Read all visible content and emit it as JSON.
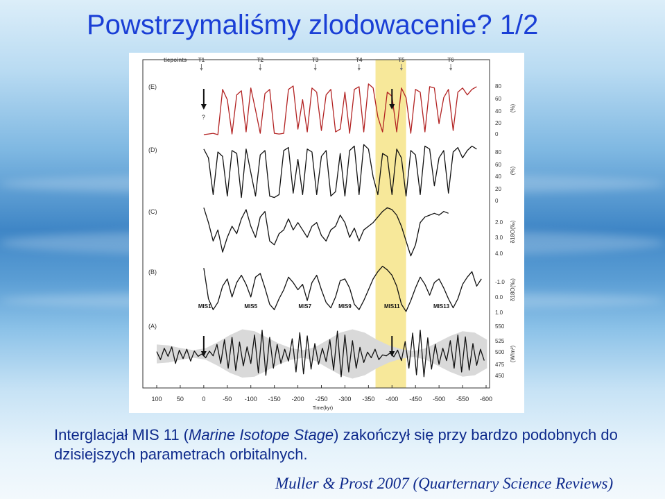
{
  "slide": {
    "title": "Powstrzymaliśmy zlodowacenie? 1/2",
    "caption": {
      "part1": "Interglacjał MIS 11 (",
      "italic": "Marine Isotope Stage",
      "part2": ") zakończył się przy bardzo podobnych do dzisiejszych parametrach orbitalnych."
    },
    "citation": "Muller & Prost 2007 (Quarternary Science Reviews)"
  },
  "colors": {
    "title": "#1a3fd6",
    "caption": "#0e2a8c",
    "series_E": "#b22222",
    "series_other": "#111111",
    "highlight": "#f7e89a",
    "envelope": "#d9d9d9"
  },
  "chart_data": {
    "type": "line",
    "xlabel": "Time(kyr)",
    "x_ticks": [
      100,
      50,
      0,
      -50,
      -100,
      -150,
      -200,
      -250,
      -300,
      -350,
      -400,
      -450,
      -500,
      -550,
      -600
    ],
    "xlim": [
      100,
      -600
    ],
    "tiepoints_label": "tiepoints",
    "tiepoints": [
      {
        "label": "T1",
        "x": 5
      },
      {
        "label": "T2",
        "x": -120
      },
      {
        "label": "T3",
        "x": -237
      },
      {
        "label": "T4",
        "x": -330
      },
      {
        "label": "T5",
        "x": -420
      },
      {
        "label": "T6",
        "x": -525
      }
    ],
    "highlight_range": [
      -365,
      -430
    ],
    "grid": false,
    "panels": [
      {
        "id": "E",
        "label": "(E)",
        "color": "#b22222",
        "ticks": [
          "80",
          "60",
          "40",
          "20",
          "0"
        ],
        "axis_label": "(%)",
        "ylim": [
          0,
          85
        ],
        "question_mark": "?",
        "arrows": [
          0,
          -400
        ],
        "x": [
          0,
          -10,
          -20,
          -30,
          -40,
          -50,
          -60,
          -70,
          -80,
          -90,
          -100,
          -110,
          -120,
          -130,
          -140,
          -150,
          -160,
          -170,
          -180,
          -190,
          -200,
          -210,
          -220,
          -230,
          -240,
          -250,
          -260,
          -270,
          -280,
          -290,
          -300,
          -310,
          -320,
          -330,
          -340,
          -350,
          -360,
          -370,
          -380,
          -390,
          -400,
          -410,
          -420,
          -430,
          -440,
          -450,
          -460,
          -470,
          -480,
          -490,
          -500,
          -510,
          -520,
          -530,
          -540,
          -550,
          -560,
          -570,
          -580
        ],
        "y": [
          4,
          5,
          6,
          4,
          70,
          55,
          5,
          62,
          68,
          8,
          72,
          40,
          6,
          64,
          70,
          6,
          5,
          6,
          70,
          75,
          12,
          55,
          8,
          72,
          66,
          10,
          62,
          70,
          8,
          12,
          66,
          6,
          70,
          74,
          8,
          78,
          72,
          30,
          8,
          66,
          60,
          8,
          72,
          58,
          6,
          70,
          66,
          8,
          74,
          72,
          20,
          58,
          70,
          10,
          66,
          72,
          62,
          70,
          74
        ]
      },
      {
        "id": "D",
        "label": "(D)",
        "color": "#111111",
        "ticks": [
          "80",
          "60",
          "40",
          "20",
          "0"
        ],
        "axis_label": "(%)",
        "ylim": [
          0,
          85
        ],
        "x": [
          0,
          -10,
          -20,
          -30,
          -40,
          -50,
          -60,
          -70,
          -80,
          -90,
          -100,
          -110,
          -120,
          -130,
          -140,
          -150,
          -160,
          -170,
          -180,
          -190,
          -200,
          -210,
          -220,
          -230,
          -240,
          -250,
          -260,
          -270,
          -280,
          -290,
          -300,
          -310,
          -320,
          -330,
          -340,
          -350,
          -360,
          -370,
          -380,
          -390,
          -400,
          -410,
          -420,
          -430,
          -440,
          -450,
          -460,
          -470,
          -480,
          -490,
          -500,
          -510,
          -520,
          -530,
          -540,
          -550,
          -560,
          -570,
          -580
        ],
        "y": [
          72,
          60,
          10,
          68,
          62,
          8,
          70,
          66,
          6,
          72,
          40,
          8,
          64,
          70,
          8,
          6,
          10,
          70,
          74,
          12,
          58,
          10,
          72,
          68,
          10,
          62,
          70,
          8,
          14,
          66,
          8,
          70,
          76,
          10,
          78,
          72,
          34,
          10,
          66,
          62,
          10,
          72,
          60,
          8,
          70,
          64,
          10,
          76,
          72,
          22,
          60,
          70,
          12,
          68,
          74,
          60,
          70,
          76,
          72
        ]
      },
      {
        "id": "C",
        "label": "(C)",
        "color": "#111111",
        "ticks": [
          "2.0",
          "3.0",
          "4.0"
        ],
        "axis_label": "δ18O(‰)",
        "ylim": [
          4.6,
          1.6
        ],
        "x": [
          0,
          -10,
          -20,
          -30,
          -40,
          -50,
          -60,
          -70,
          -80,
          -90,
          -100,
          -110,
          -120,
          -130,
          -140,
          -150,
          -160,
          -170,
          -180,
          -190,
          -200,
          -210,
          -220,
          -230,
          -240,
          -250,
          -260,
          -270,
          -280,
          -290,
          -300,
          -310,
          -320,
          -330,
          -340,
          -350,
          -360,
          -370,
          -380,
          -390,
          -400,
          -410,
          -420,
          -430,
          -440,
          -450,
          -460,
          -470,
          -480,
          -490,
          -500,
          -510,
          -520
        ],
        "y": [
          1.8,
          2.6,
          3.6,
          3.0,
          4.2,
          3.4,
          2.8,
          3.2,
          2.4,
          1.9,
          2.8,
          3.4,
          2.3,
          2.0,
          3.6,
          3.8,
          3.2,
          3.0,
          2.4,
          3.0,
          2.6,
          3.0,
          3.4,
          2.8,
          2.6,
          3.3,
          3.6,
          3.0,
          2.8,
          2.2,
          2.6,
          3.4,
          2.9,
          3.6,
          3.0,
          2.8,
          2.6,
          2.3,
          2.0,
          1.8,
          1.9,
          2.2,
          2.8,
          3.6,
          4.4,
          3.8,
          2.6,
          2.3,
          2.2,
          2.1,
          2.2,
          2.0,
          2.1
        ]
      },
      {
        "id": "B",
        "label": "(B)",
        "color": "#111111",
        "ticks": [
          "-1.0",
          "0.0",
          "1.0"
        ],
        "axis_label": "δ18O(‰)",
        "ylim": [
          1.2,
          -1.6
        ],
        "x": [
          0,
          -10,
          -20,
          -30,
          -40,
          -50,
          -60,
          -70,
          -80,
          -90,
          -100,
          -110,
          -120,
          -130,
          -140,
          -150,
          -160,
          -170,
          -180,
          -190,
          -200,
          -210,
          -220,
          -230,
          -240,
          -250,
          -260,
          -270,
          -280,
          -290,
          -300,
          -310,
          -320,
          -330,
          -340,
          -350,
          -360,
          -370,
          -380,
          -390,
          -400,
          -410,
          -420,
          -430,
          -440,
          -450,
          -460,
          -470,
          -480,
          -490,
          -500,
          -510,
          -520,
          -530,
          -540,
          -550,
          -560,
          -570,
          -580,
          -590
        ],
        "y": [
          -1.4,
          0.3,
          0.9,
          0.5,
          -0.4,
          -0.8,
          0.2,
          -0.6,
          -1.0,
          -0.5,
          0.2,
          -0.9,
          -1.1,
          -0.3,
          0.6,
          0.9,
          0.3,
          -0.2,
          -0.9,
          -0.6,
          -0.2,
          -0.5,
          0.4,
          -0.6,
          -1.0,
          -0.2,
          0.5,
          0.8,
          0.2,
          -0.7,
          -0.8,
          -0.3,
          0.6,
          0.9,
          0.4,
          -0.2,
          -0.8,
          -1.2,
          -1.5,
          -1.3,
          -1.0,
          -0.4,
          0.6,
          1.0,
          0.4,
          -0.3,
          -0.9,
          -0.5,
          0.1,
          -0.6,
          -0.8,
          -0.3,
          0.3,
          0.8,
          0.3,
          -0.5,
          -0.9,
          -1.2,
          -0.4,
          -0.8
        ]
      },
      {
        "id": "A",
        "label": "(A)",
        "color": "#111111",
        "ticks": [
          "550",
          "525",
          "500",
          "475",
          "450"
        ],
        "axis_label": "(W/m²)",
        "ylim": [
          440,
          560
        ],
        "arrows": [
          0,
          -400
        ],
        "x": [
          100,
          92,
          84,
          76,
          68,
          60,
          52,
          44,
          36,
          28,
          20,
          12,
          4,
          -4,
          -12,
          -20,
          -28,
          -36,
          -44,
          -52,
          -60,
          -68,
          -76,
          -84,
          -92,
          -100,
          -108,
          -116,
          -124,
          -132,
          -140,
          -148,
          -156,
          -164,
          -172,
          -180,
          -188,
          -196,
          -204,
          -212,
          -220,
          -228,
          -236,
          -244,
          -252,
          -260,
          -268,
          -276,
          -284,
          -292,
          -300,
          -308,
          -316,
          -324,
          -332,
          -340,
          -348,
          -356,
          -364,
          -372,
          -380,
          -388,
          -396,
          -404,
          -412,
          -420,
          -428,
          -436,
          -444,
          -452,
          -460,
          -468,
          -476,
          -484,
          -492,
          -500,
          -508,
          -516,
          -524,
          -532,
          -540,
          -548,
          -556,
          -564,
          -572,
          -580,
          -588,
          -596
        ],
        "y": [
          505,
          488,
          512,
          495,
          515,
          480,
          508,
          490,
          510,
          485,
          506,
          495,
          500,
          492,
          506,
          496,
          520,
          480,
          530,
          470,
          535,
          465,
          525,
          475,
          515,
          480,
          540,
          460,
          550,
          455,
          535,
          470,
          520,
          480,
          510,
          485,
          532,
          462,
          545,
          458,
          538,
          468,
          522,
          478,
          512,
          484,
          530,
          466,
          548,
          452,
          540,
          462,
          528,
          470,
          514,
          482,
          504,
          492,
          510,
          488,
          498,
          496,
          502,
          494,
          508,
          486,
          526,
          470,
          544,
          456,
          550,
          452,
          534,
          468,
          520,
          478,
          512,
          486,
          528,
          470,
          540,
          462,
          536,
          466,
          522,
          476,
          510,
          486
        ]
      },
      {
        "id": "A-envelope",
        "label": "",
        "upper": [
          520,
          518,
          512,
          508,
          512,
          525,
          540,
          552,
          548,
          535,
          522,
          512,
          508,
          515,
          530,
          545,
          552,
          545,
          530,
          518,
          510,
          506,
          512,
          525,
          538,
          548,
          545,
          530
        ],
        "lower": [
          480,
          482,
          488,
          492,
          488,
          475,
          460,
          450,
          452,
          465,
          478,
          488,
          492,
          485,
          470,
          456,
          448,
          455,
          470,
          482,
          490,
          494,
          488,
          475,
          462,
          452,
          455,
          470
        ],
        "x": [
          100,
          74,
          48,
          22,
          -4,
          -30,
          -56,
          -82,
          -108,
          -134,
          -160,
          -186,
          -212,
          -238,
          -264,
          -290,
          -316,
          -342,
          -368,
          -394,
          -420,
          -446,
          -472,
          -498,
          -524,
          -550,
          -576,
          -602
        ]
      }
    ],
    "annotations": [
      {
        "text": "MIS1",
        "x": -2
      },
      {
        "text": "MIS5",
        "x": -100
      },
      {
        "text": "MIS7",
        "x": -215
      },
      {
        "text": "MIS9",
        "x": -300
      },
      {
        "text": "MIS11",
        "x": -400
      },
      {
        "text": "MIS13",
        "x": -505
      }
    ]
  }
}
